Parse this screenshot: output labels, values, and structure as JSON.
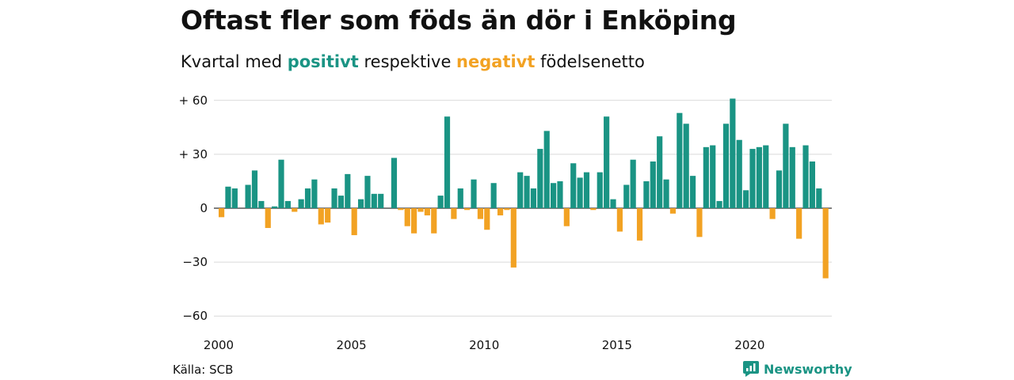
{
  "header": {
    "title": "Oftast fler som föds än dör i Enköping",
    "subtitle_pre": "Kvartal med ",
    "subtitle_pos": "positivt",
    "subtitle_mid": " respektive ",
    "subtitle_neg": "negativt",
    "subtitle_post": " födelsenetto"
  },
  "footer": {
    "source": "Källa: SCB",
    "brand": "Newsworthy"
  },
  "colors": {
    "positive": "#1a9484",
    "negative": "#f2a223",
    "grid": "#d9d9d9"
  },
  "chart_data": {
    "type": "bar",
    "start_year": 2000,
    "quarters_per_year": 4,
    "xlabel": "",
    "ylabel": "",
    "ylim": [
      -60,
      60
    ],
    "y_ticks": [
      {
        "value": 60,
        "label": "+ 60"
      },
      {
        "value": 30,
        "label": "+ 30"
      },
      {
        "value": 0,
        "label": "0"
      },
      {
        "value": -30,
        "label": "−30"
      },
      {
        "value": -60,
        "label": "−60"
      }
    ],
    "x_ticks": [
      {
        "year": 2000,
        "label": "2000"
      },
      {
        "year": 2005,
        "label": "2005"
      },
      {
        "year": 2010,
        "label": "2010"
      },
      {
        "year": 2015,
        "label": "2015"
      },
      {
        "year": 2020,
        "label": "2020"
      }
    ],
    "grid": true,
    "legend": "none",
    "values": [
      -5,
      12,
      11,
      0,
      13,
      21,
      4,
      -11,
      1,
      27,
      4,
      -2,
      5,
      11,
      16,
      -9,
      -8,
      11,
      7,
      19,
      -15,
      5,
      18,
      8,
      8,
      0,
      28,
      -1,
      -10,
      -14,
      -2,
      -4,
      -14,
      7,
      51,
      -6,
      11,
      -1,
      16,
      -6,
      -12,
      14,
      -4,
      -1,
      -33,
      20,
      18,
      11,
      33,
      43,
      14,
      15,
      -10,
      25,
      17,
      20,
      -1,
      20,
      51,
      5,
      -13,
      13,
      27,
      -18,
      15,
      26,
      40,
      16,
      -3,
      53,
      47,
      18,
      -16,
      34,
      35,
      4,
      47,
      61,
      38,
      10,
      33,
      34,
      35,
      -6,
      21,
      47,
      34,
      -17,
      35,
      26,
      11,
      -39
    ]
  }
}
